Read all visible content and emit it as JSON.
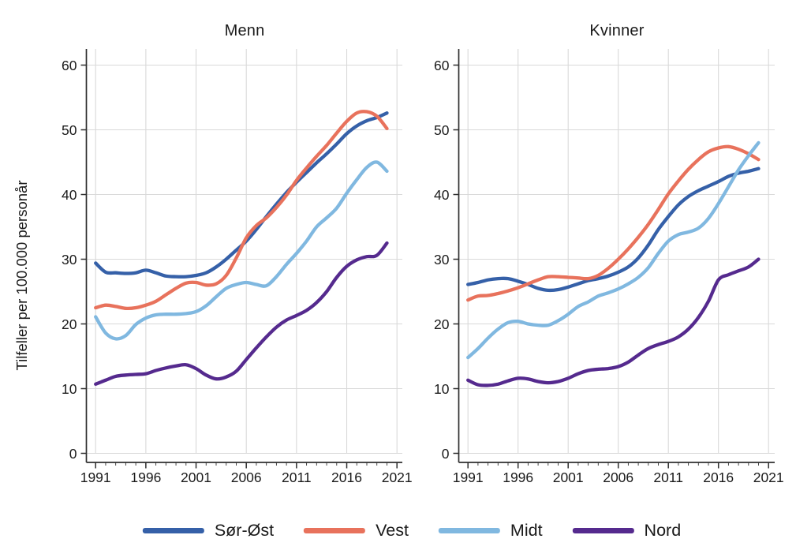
{
  "figure": {
    "y_axis_label": "Tilfeller per 100.000 personår"
  },
  "legend": {
    "items": [
      {
        "label": "Sør-Øst",
        "color": "#3560a8"
      },
      {
        "label": "Vest",
        "color": "#e8725c"
      },
      {
        "label": "Midt",
        "color": "#80b8e0"
      },
      {
        "label": "Nord",
        "color": "#552a8e"
      }
    ]
  },
  "chart_data": [
    {
      "type": "line",
      "title": "Menn",
      "ylabel": "Tilfeller per 100.000 personår",
      "xlabel": "",
      "ylim": [
        0,
        60
      ],
      "xlim": [
        1990,
        2021.6
      ],
      "grid": true,
      "legend_position": "bottom",
      "x_ticks": [
        1991,
        1996,
        2001,
        2006,
        2011,
        2016,
        2021
      ],
      "y_ticks": [
        0,
        10,
        20,
        30,
        40,
        50,
        60
      ],
      "x": [
        1991,
        1992,
        1993,
        1994,
        1995,
        1996,
        1997,
        1998,
        1999,
        2000,
        2001,
        2002,
        2003,
        2004,
        2005,
        2006,
        2007,
        2008,
        2009,
        2010,
        2011,
        2012,
        2013,
        2014,
        2015,
        2016,
        2017,
        2018,
        2019,
        2020
      ],
      "series": [
        {
          "name": "Sør-Øst",
          "color": "#3560a8",
          "values": [
            29.4,
            28.0,
            27.9,
            27.8,
            27.9,
            28.3,
            27.9,
            27.4,
            27.3,
            27.3,
            27.5,
            27.9,
            28.8,
            30.0,
            31.4,
            32.8,
            34.6,
            36.6,
            38.5,
            40.3,
            41.9,
            43.4,
            44.9,
            46.3,
            47.8,
            49.4,
            50.6,
            51.4,
            51.9,
            52.6
          ]
        },
        {
          "name": "Vest",
          "color": "#e8725c",
          "values": [
            22.5,
            22.9,
            22.7,
            22.4,
            22.5,
            22.9,
            23.5,
            24.5,
            25.5,
            26.3,
            26.4,
            26.0,
            26.2,
            27.5,
            30.2,
            33.3,
            35.2,
            36.4,
            38.0,
            39.9,
            42.2,
            44.1,
            45.9,
            47.6,
            49.5,
            51.3,
            52.6,
            52.8,
            52.1,
            50.2
          ]
        },
        {
          "name": "Midt",
          "color": "#80b8e0",
          "values": [
            21.1,
            18.6,
            17.7,
            18.2,
            19.9,
            20.9,
            21.4,
            21.5,
            21.5,
            21.6,
            21.9,
            22.8,
            24.2,
            25.5,
            26.1,
            26.4,
            26.1,
            25.9,
            27.3,
            29.2,
            30.9,
            32.8,
            35.0,
            36.4,
            37.9,
            40.2,
            42.3,
            44.2,
            45.0,
            43.6
          ]
        },
        {
          "name": "Nord",
          "color": "#552a8e",
          "values": [
            10.7,
            11.3,
            11.9,
            12.1,
            12.2,
            12.3,
            12.8,
            13.2,
            13.5,
            13.7,
            13.1,
            12.1,
            11.5,
            11.8,
            12.7,
            14.5,
            16.3,
            18.0,
            19.5,
            20.6,
            21.3,
            22.1,
            23.3,
            25.0,
            27.2,
            28.9,
            29.9,
            30.4,
            30.6,
            32.5
          ]
        }
      ]
    },
    {
      "type": "line",
      "title": "Kvinner",
      "ylabel": "Tilfeller per 100.000 personår",
      "xlabel": "",
      "ylim": [
        0,
        60
      ],
      "xlim": [
        1990,
        2021.6
      ],
      "grid": true,
      "legend_position": "bottom",
      "x_ticks": [
        1991,
        1996,
        2001,
        2006,
        2011,
        2016,
        2021
      ],
      "y_ticks": [
        0,
        10,
        20,
        30,
        40,
        50,
        60
      ],
      "x": [
        1991,
        1992,
        1993,
        1994,
        1995,
        1996,
        1997,
        1998,
        1999,
        2000,
        2001,
        2002,
        2003,
        2004,
        2005,
        2006,
        2007,
        2008,
        2009,
        2010,
        2011,
        2012,
        2013,
        2014,
        2015,
        2016,
        2017,
        2018,
        2019,
        2020
      ],
      "series": [
        {
          "name": "Sør-Øst",
          "color": "#3560a8",
          "values": [
            26.1,
            26.4,
            26.8,
            27.0,
            27.0,
            26.6,
            26.1,
            25.5,
            25.2,
            25.3,
            25.7,
            26.2,
            26.7,
            27.0,
            27.4,
            28.0,
            28.8,
            30.2,
            32.2,
            34.6,
            36.6,
            38.4,
            39.7,
            40.6,
            41.3,
            42.0,
            42.8,
            43.3,
            43.6,
            44.0
          ]
        },
        {
          "name": "Vest",
          "color": "#e8725c",
          "values": [
            23.7,
            24.3,
            24.4,
            24.7,
            25.1,
            25.6,
            26.2,
            26.8,
            27.3,
            27.3,
            27.2,
            27.1,
            27.0,
            27.5,
            28.6,
            30.0,
            31.6,
            33.4,
            35.4,
            37.7,
            40.1,
            42.1,
            43.9,
            45.4,
            46.6,
            47.2,
            47.4,
            47.0,
            46.3,
            45.4
          ]
        },
        {
          "name": "Midt",
          "color": "#80b8e0",
          "values": [
            14.8,
            16.2,
            17.8,
            19.2,
            20.2,
            20.4,
            20.0,
            19.8,
            19.8,
            20.5,
            21.5,
            22.7,
            23.4,
            24.3,
            24.8,
            25.4,
            26.2,
            27.2,
            28.7,
            30.9,
            32.8,
            33.8,
            34.2,
            34.8,
            36.3,
            38.6,
            41.2,
            43.8,
            46.0,
            48.0
          ]
        },
        {
          "name": "Nord",
          "color": "#552a8e",
          "values": [
            11.3,
            10.6,
            10.5,
            10.7,
            11.2,
            11.6,
            11.5,
            11.1,
            10.9,
            11.1,
            11.6,
            12.3,
            12.8,
            13.0,
            13.1,
            13.4,
            14.1,
            15.2,
            16.2,
            16.8,
            17.3,
            18.0,
            19.2,
            21.0,
            23.5,
            26.8,
            27.6,
            28.2,
            28.8,
            30.0
          ]
        }
      ]
    }
  ]
}
